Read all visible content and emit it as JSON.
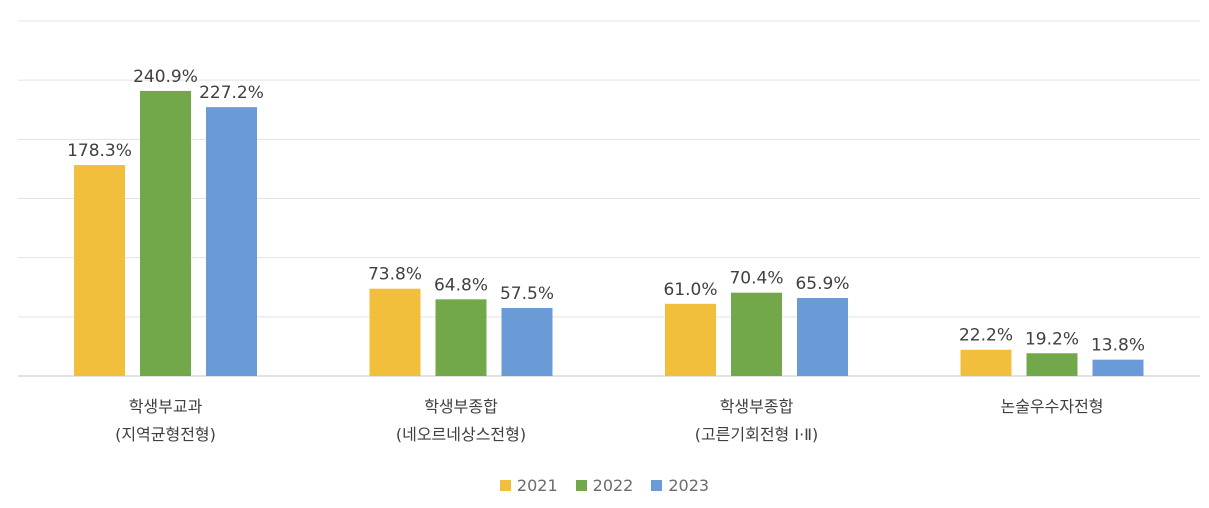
{
  "chart_data": {
    "type": "bar",
    "categories": [
      [
        "학생부교과",
        "(지역균형전형)"
      ],
      [
        "학생부종합",
        "(네오르네상스전형)"
      ],
      [
        "학생부종합",
        "(고른기회전형 Ⅰ·Ⅱ)"
      ],
      [
        "논술우수자전형"
      ]
    ],
    "series": [
      {
        "name": "2021",
        "values": [
          178.3,
          73.8,
          61.0,
          22.2
        ],
        "labels": [
          "178.3%",
          "73.8%",
          "61.0%",
          "22.2%"
        ]
      },
      {
        "name": "2022",
        "values": [
          240.9,
          64.8,
          70.4,
          19.2
        ],
        "labels": [
          "240.9%",
          "64.8%",
          "70.4%",
          "19.2%"
        ]
      },
      {
        "name": "2023",
        "values": [
          227.2,
          57.5,
          65.9,
          13.8
        ],
        "labels": [
          "227.2%",
          "57.5%",
          "65.9%",
          "13.8%"
        ]
      }
    ],
    "ylim": [
      0,
      300
    ],
    "grid": true,
    "legend_position": "bottom",
    "colors": [
      "#F2BF3C",
      "#72A84A",
      "#6A9BD6"
    ]
  }
}
